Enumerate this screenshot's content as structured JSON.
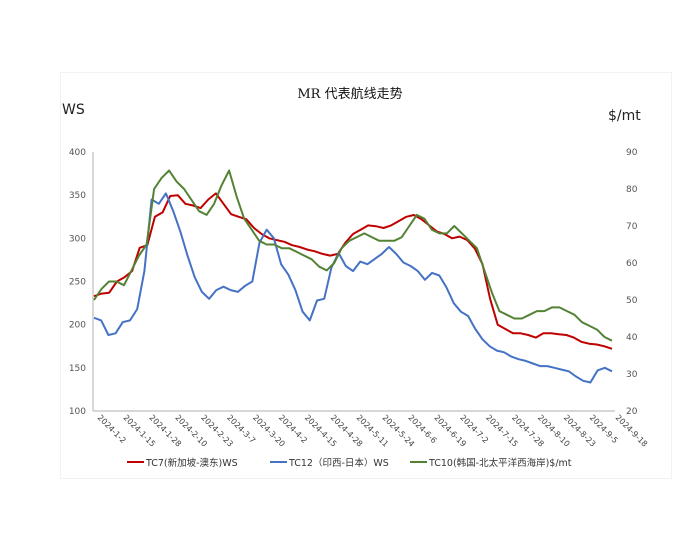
{
  "chart_data": {
    "type": "line",
    "title": "MR 代表航线走势",
    "ylabel_left": "WS",
    "ylabel_right": "$/mt",
    "ylim_left": [
      100,
      400
    ],
    "ylim_right": [
      20,
      90
    ],
    "yticks_left": [
      100,
      150,
      200,
      250,
      300,
      350,
      400
    ],
    "yticks_right": [
      20,
      30,
      40,
      50,
      60,
      70,
      80,
      90
    ],
    "x_tick_labels": [
      "2024-1-2",
      "2024-1-15",
      "2024-1-28",
      "2024-2-10",
      "2024-2-23",
      "2024-3-7",
      "2024-3-20",
      "2024-4-2",
      "2024-4-15",
      "2024-4-28",
      "2024-5-11",
      "2024-5-24",
      "2024-6-6",
      "2024-6-19",
      "2024-7-2",
      "2024-7-15",
      "2024-7-28",
      "2024-8-10",
      "2024-8-23",
      "2024-9-5",
      "2024-9-18"
    ],
    "grid": false,
    "legend_position": "bottom",
    "series": [
      {
        "name": "TC7(新加坡-澳东)WS",
        "axis": "left",
        "color": "#C00000",
        "values": [
          233,
          236,
          237,
          250,
          255,
          262,
          289,
          292,
          325,
          330,
          349,
          350,
          340,
          338,
          335,
          345,
          352,
          340,
          328,
          325,
          322,
          312,
          305,
          300,
          298,
          296,
          292,
          290,
          287,
          285,
          282,
          280,
          282,
          295,
          305,
          310,
          315,
          314,
          312,
          315,
          320,
          325,
          327,
          322,
          315,
          308,
          305,
          300,
          302,
          298,
          288,
          270,
          230,
          200,
          195,
          190,
          190,
          188,
          185,
          190,
          190,
          189,
          188,
          185,
          180,
          178,
          177,
          175,
          172
        ]
      },
      {
        "name": "TC12（印西-日本）WS",
        "axis": "left",
        "color": "#4472C4",
        "values": [
          208,
          205,
          188,
          190,
          203,
          205,
          218,
          262,
          345,
          340,
          352,
          332,
          308,
          280,
          255,
          238,
          230,
          240,
          244,
          240,
          238,
          245,
          250,
          295,
          310,
          300,
          270,
          258,
          240,
          215,
          205,
          228,
          230,
          266,
          283,
          268,
          262,
          273,
          270,
          276,
          282,
          290,
          282,
          272,
          268,
          262,
          252,
          260,
          257,
          243,
          225,
          215,
          210,
          195,
          183,
          175,
          170,
          168,
          163,
          160,
          158,
          155,
          152,
          152,
          150,
          148,
          146,
          140,
          135,
          133,
          147,
          150,
          146
        ]
      },
      {
        "name": "TC10(韩国-北太平洋西海岸)$/mt",
        "axis": "right",
        "color": "#548235",
        "values": [
          50,
          53,
          55,
          55,
          54,
          58,
          62,
          65,
          80,
          83,
          85,
          82,
          80,
          77,
          74,
          73,
          76,
          81,
          85,
          78,
          72,
          69,
          66,
          65,
          65,
          64,
          64,
          63,
          62,
          61,
          59,
          58,
          60,
          64,
          66,
          67,
          68,
          67,
          66,
          66,
          66,
          67,
          70,
          73,
          72,
          69,
          68,
          68,
          70,
          68,
          66,
          64,
          58,
          52,
          47,
          46,
          45,
          45,
          46,
          47,
          47,
          48,
          48,
          47,
          46,
          44,
          43,
          42,
          40,
          39
        ]
      }
    ]
  },
  "legend": {
    "items": [
      {
        "label": "TC7(新加坡-澳东)WS",
        "color": "#C00000"
      },
      {
        "label": "TC12（印西-日本）WS",
        "color": "#4472C4"
      },
      {
        "label": "TC10(韩国-北太平洋西海岸)$/mt",
        "color": "#548235"
      }
    ]
  }
}
